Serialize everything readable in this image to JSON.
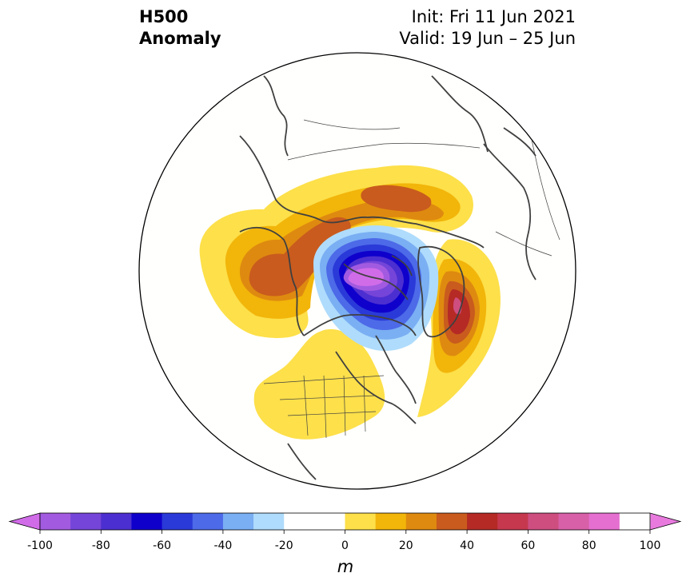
{
  "header": {
    "title_line1": "H500",
    "title_line2": "Anomaly",
    "init": "Init: Fri 11 Jun 2021",
    "valid": "Valid: 19 Jun – 25 Jun"
  },
  "colorbar": {
    "unit": "m",
    "ticks": [
      "-100",
      "-80",
      "-60",
      "-40",
      "-20",
      "0",
      "20",
      "40",
      "60",
      "80",
      "100"
    ],
    "levels": [
      -100,
      -90,
      -80,
      -70,
      -60,
      -50,
      -40,
      -30,
      -20,
      -10,
      10,
      20,
      30,
      40,
      50,
      60,
      70,
      80,
      90,
      100
    ],
    "colors": [
      "#a25be0",
      "#7545d9",
      "#4c2fd0",
      "#0f00cc",
      "#2a3ad8",
      "#4d6ae8",
      "#7aaff3",
      "#afdcfc",
      "#ffffff",
      "#ffffff",
      "#fde04a",
      "#f2b50a",
      "#de8a10",
      "#c95b1e",
      "#b52a25",
      "#c6384e",
      "#ce4e80",
      "#d860a8",
      "#e56fd0"
    ],
    "extend_low": "#d16ce8",
    "extend_high": "#e87ade"
  },
  "map": {
    "projection": "north polar stereographic",
    "features": [
      "coastlines",
      "country borders",
      "US state borders"
    ],
    "anomaly_centers": [
      {
        "region": "North Pole / Canadian Arctic",
        "value_m": -100,
        "sign": "negative"
      },
      {
        "region": "Alaska / Bering",
        "value_m": 50,
        "sign": "positive"
      },
      {
        "region": "Siberia",
        "value_m": 50,
        "sign": "positive"
      },
      {
        "region": "North Atlantic / Greenland east",
        "value_m": 70,
        "sign": "positive"
      },
      {
        "region": "Western United States",
        "value_m": 15,
        "sign": "positive"
      }
    ]
  }
}
